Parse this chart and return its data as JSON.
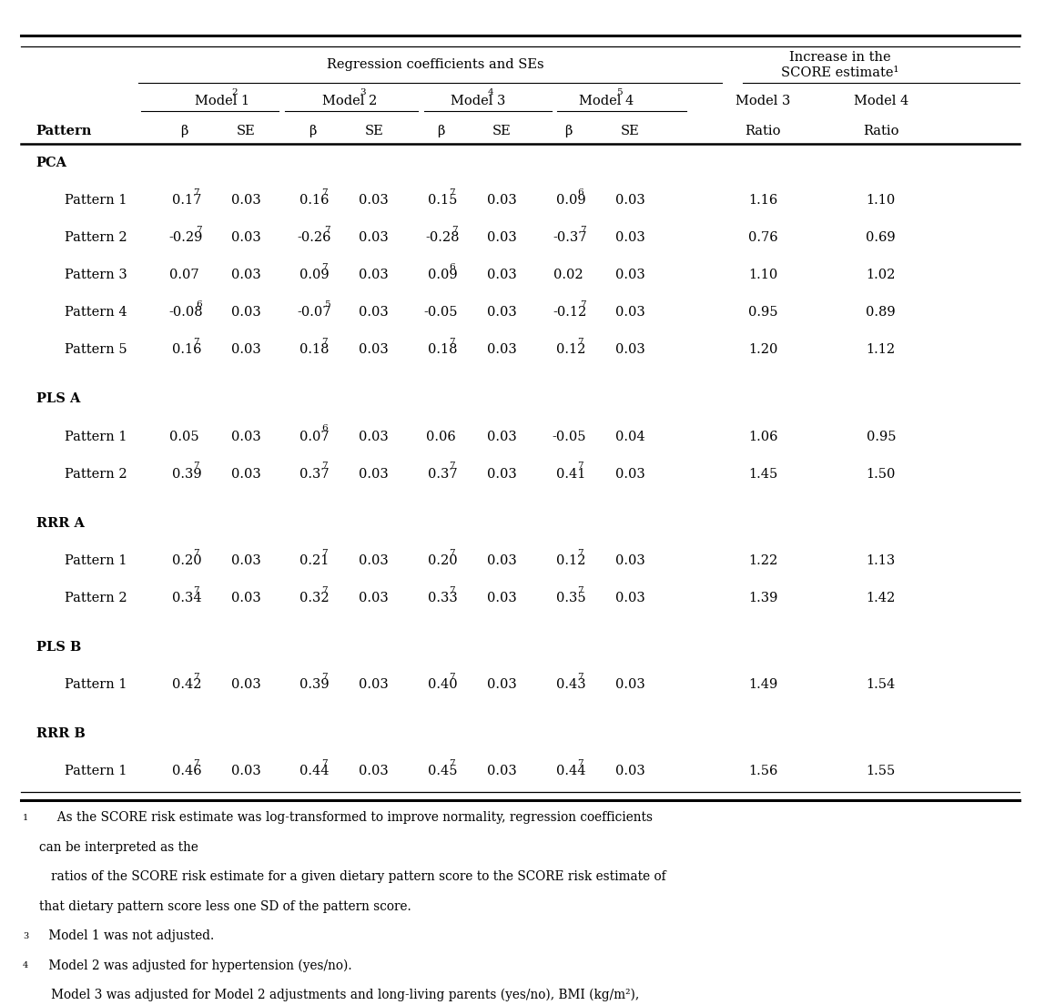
{
  "title_main": "Regression coefficients and SEs",
  "col_x": {
    "pattern": 0.025,
    "b1": 0.17,
    "se1": 0.23,
    "b2": 0.295,
    "se2": 0.355,
    "b3": 0.42,
    "se3": 0.48,
    "b4": 0.545,
    "se4": 0.605,
    "r3": 0.735,
    "r4": 0.85
  },
  "sections": [
    {
      "header": "PCA",
      "rows": [
        {
          "label": "Pattern 1",
          "b1": "0.17",
          "b1s": "7",
          "se1": "0.03",
          "b2": "0.16",
          "b2s": "7",
          "se2": "0.03",
          "b3": "0.15",
          "b3s": "7",
          "se3": "0.03",
          "b4": "0.09",
          "b4s": "6",
          "se4": "0.03",
          "r3": "1.16",
          "r4": "1.10"
        },
        {
          "label": "Pattern 2",
          "b1": "-0.29",
          "b1s": "7",
          "se1": "0.03",
          "b2": "-0.26",
          "b2s": "7",
          "se2": "0.03",
          "b3": "-0.28",
          "b3s": "7",
          "se3": "0.03",
          "b4": "-0.37",
          "b4s": "7",
          "se4": "0.03",
          "r3": "0.76",
          "r4": "0.69"
        },
        {
          "label": "Pattern 3",
          "b1": "0.07",
          "b1s": "",
          "se1": "0.03",
          "b2": "0.09",
          "b2s": "7",
          "se2": "0.03",
          "b3": "0.09",
          "b3s": "6",
          "se3": "0.03",
          "b4": "0.02",
          "b4s": "",
          "se4": "0.03",
          "r3": "1.10",
          "r4": "1.02"
        },
        {
          "label": "Pattern 4",
          "b1": "-0.08",
          "b1s": "6",
          "se1": "0.03",
          "b2": "-0.07",
          "b2s": "5",
          "se2": "0.03",
          "b3": "-0.05",
          "b3s": "",
          "se3": "0.03",
          "b4": "-0.12",
          "b4s": "7",
          "se4": "0.03",
          "r3": "0.95",
          "r4": "0.89"
        },
        {
          "label": "Pattern 5",
          "b1": "0.16",
          "b1s": "7",
          "se1": "0.03",
          "b2": "0.18",
          "b2s": "7",
          "se2": "0.03",
          "b3": "0.18",
          "b3s": "7",
          "se3": "0.03",
          "b4": "0.12",
          "b4s": "7",
          "se4": "0.03",
          "r3": "1.20",
          "r4": "1.12"
        }
      ]
    },
    {
      "header": "PLS A",
      "rows": [
        {
          "label": "Pattern 1",
          "b1": "0.05",
          "b1s": "",
          "se1": "0.03",
          "b2": "0.07",
          "b2s": "6",
          "se2": "0.03",
          "b3": "0.06",
          "b3s": "",
          "se3": "0.03",
          "b4": "-0.05",
          "b4s": "",
          "se4": "0.04",
          "r3": "1.06",
          "r4": "0.95"
        },
        {
          "label": "Pattern 2",
          "b1": "0.39",
          "b1s": "7",
          "se1": "0.03",
          "b2": "0.37",
          "b2s": "7",
          "se2": "0.03",
          "b3": "0.37",
          "b3s": "7",
          "se3": "0.03",
          "b4": "0.41",
          "b4s": "7",
          "se4": "0.03",
          "r3": "1.45",
          "r4": "1.50"
        }
      ]
    },
    {
      "header": "RRR A",
      "rows": [
        {
          "label": "Pattern 1",
          "b1": "0.20",
          "b1s": "7",
          "se1": "0.03",
          "b2": "0.21",
          "b2s": "7",
          "se2": "0.03",
          "b3": "0.20",
          "b3s": "7",
          "se3": "0.03",
          "b4": "0.12",
          "b4s": "7",
          "se4": "0.03",
          "r3": "1.22",
          "r4": "1.13"
        },
        {
          "label": "Pattern 2",
          "b1": "0.34",
          "b1s": "7",
          "se1": "0.03",
          "b2": "0.32",
          "b2s": "7",
          "se2": "0.03",
          "b3": "0.33",
          "b3s": "7",
          "se3": "0.03",
          "b4": "0.35",
          "b4s": "7",
          "se4": "0.03",
          "r3": "1.39",
          "r4": "1.42"
        }
      ]
    },
    {
      "header": "PLS B",
      "rows": [
        {
          "label": "Pattern 1",
          "b1": "0.42",
          "b1s": "7",
          "se1": "0.03",
          "b2": "0.39",
          "b2s": "7",
          "se2": "0.03",
          "b3": "0.40",
          "b3s": "7",
          "se3": "0.03",
          "b4": "0.43",
          "b4s": "7",
          "se4": "0.03",
          "r3": "1.49",
          "r4": "1.54"
        }
      ]
    },
    {
      "header": "RRR B",
      "rows": [
        {
          "label": "Pattern 1",
          "b1": "0.46",
          "b1s": "7",
          "se1": "0.03",
          "b2": "0.44",
          "b2s": "7",
          "se2": "0.03",
          "b3": "0.45",
          "b3s": "7",
          "se3": "0.03",
          "b4": "0.44",
          "b4s": "7",
          "se4": "0.03",
          "r3": "1.56",
          "r4": "1.55"
        }
      ]
    }
  ]
}
